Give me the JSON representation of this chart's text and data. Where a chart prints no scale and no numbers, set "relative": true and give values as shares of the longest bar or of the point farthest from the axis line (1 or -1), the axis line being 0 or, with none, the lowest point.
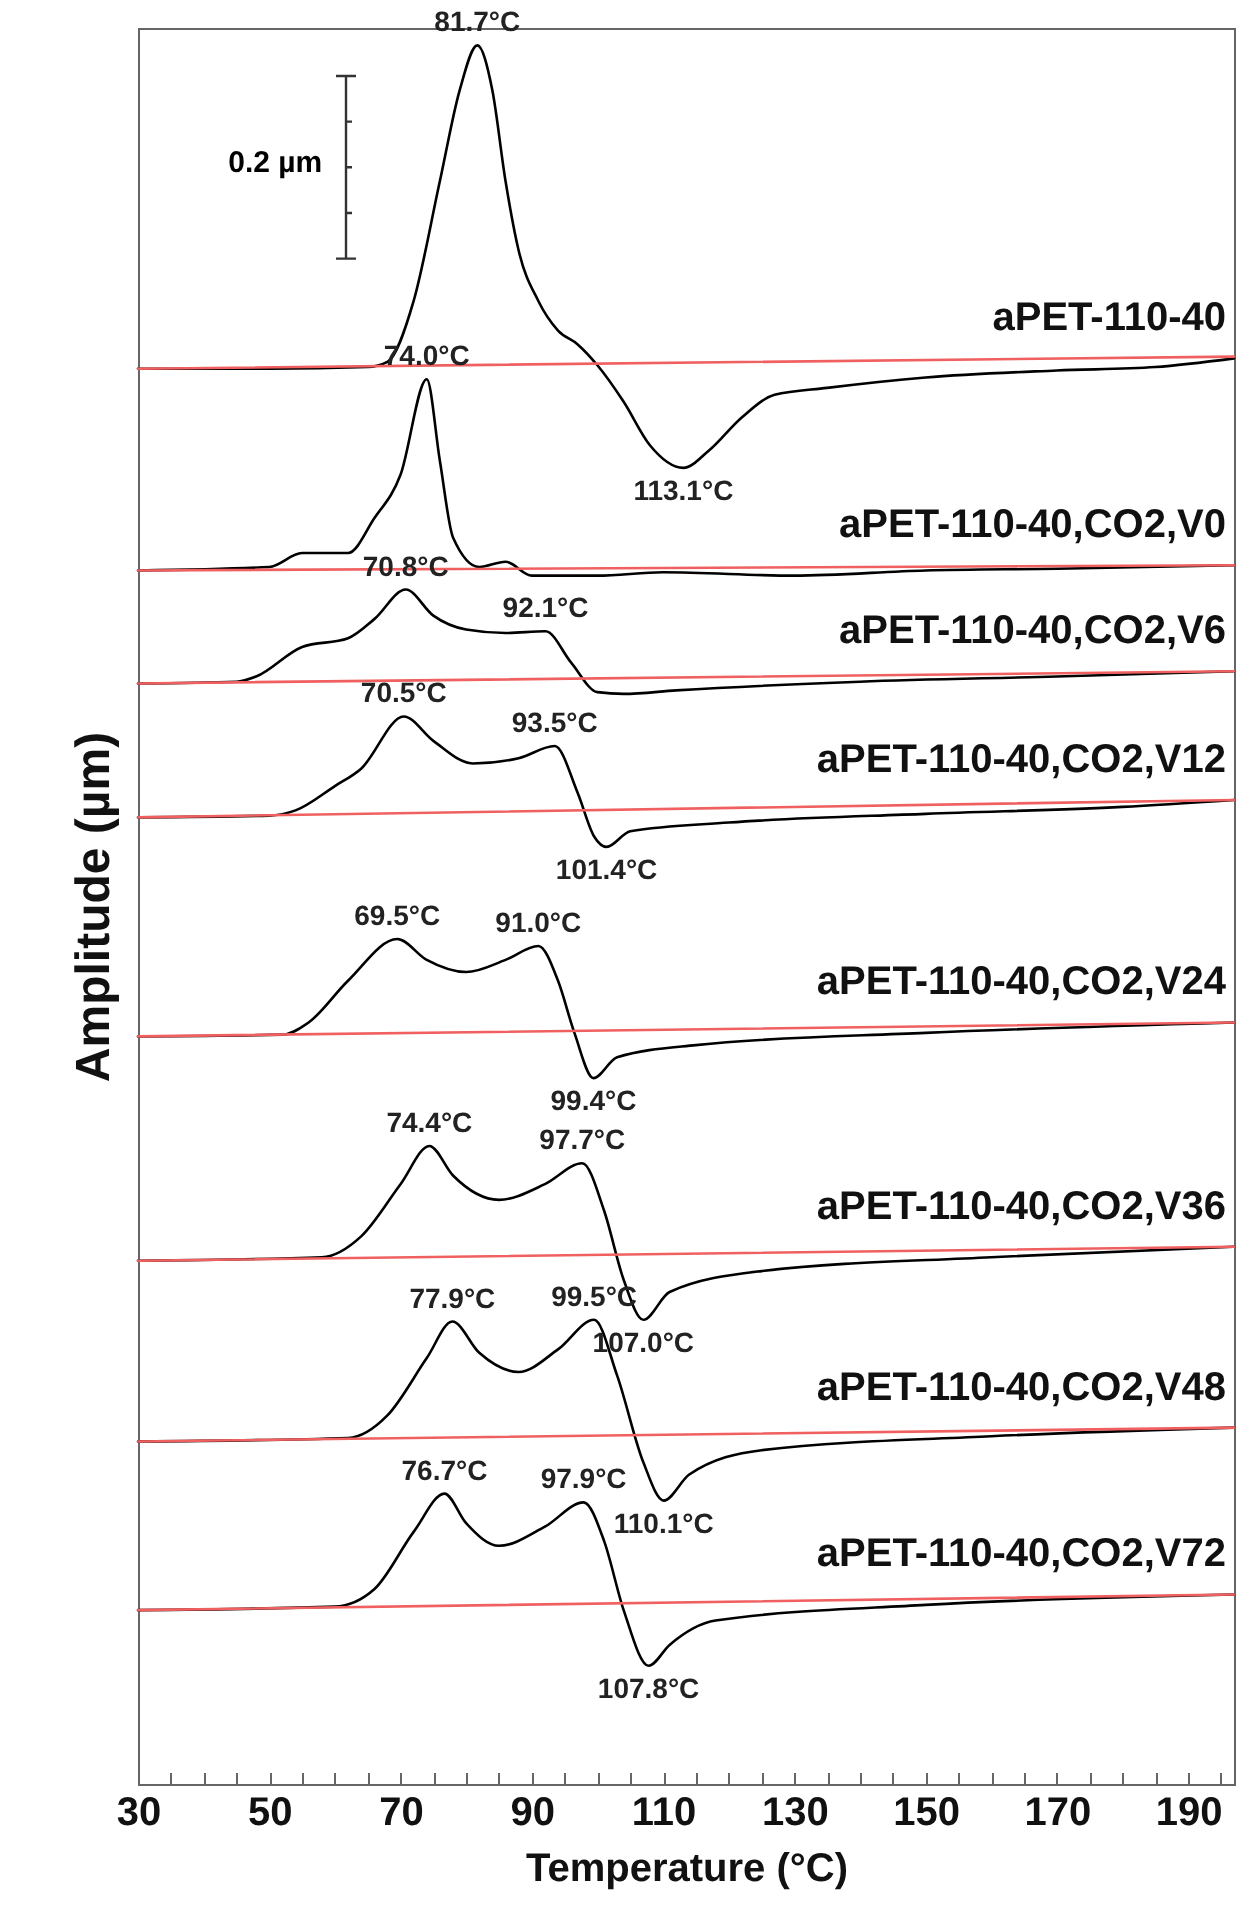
{
  "chart_data": {
    "type": "line",
    "relative": true,
    "xlabel": "Temperature (°C)",
    "ylabel": "Amplitude (µm)",
    "xlim": [
      30,
      197
    ],
    "tick_labels": "x",
    "xticks": [
      30,
      {
        "value": 35,
        "label": null
      },
      {
        "value": 40,
        "label": null
      },
      {
        "value": 45,
        "label": null
      },
      50,
      {
        "value": 55,
        "label": null
      },
      {
        "value": 60,
        "label": null
      },
      {
        "value": 65,
        "label": null
      },
      70,
      {
        "value": 75,
        "label": null
      },
      {
        "value": 80,
        "label": null
      },
      {
        "value": 85,
        "label": null
      },
      90,
      {
        "value": 95,
        "label": null
      },
      {
        "value": 100,
        "label": null
      },
      {
        "value": 105,
        "label": null
      },
      110,
      {
        "value": 115,
        "label": null
      },
      {
        "value": 120,
        "label": null
      },
      {
        "value": 125,
        "label": null
      },
      130,
      {
        "value": 135,
        "label": null
      },
      {
        "value": 140,
        "label": null
      },
      {
        "value": 145,
        "label": null
      },
      150,
      {
        "value": 155,
        "label": null
      },
      {
        "value": 160,
        "label": null
      },
      {
        "value": 165,
        "label": null
      },
      170,
      {
        "value": 175,
        "label": null
      },
      {
        "value": 180,
        "label": null
      },
      {
        "value": 185,
        "label": null
      },
      190,
      {
        "value": 195,
        "label": null
      }
    ],
    "series": [
      {
        "name": "aPET-110-40",
        "type": "line",
        "color": "#000000",
        "x": [
          30,
          50,
          65,
          68,
          72,
          76,
          79,
          81.7,
          84,
          86,
          88,
          91,
          94,
          97,
          100,
          104,
          108,
          113.1,
          117,
          122,
          127,
          135,
          150,
          170,
          185,
          197
        ],
        "values": [
          0.814,
          0.814,
          0.815,
          0.818,
          0.853,
          0.922,
          0.974,
          1,
          0.974,
          0.922,
          0.882,
          0.853,
          0.836,
          0.828,
          0.816,
          0.795,
          0.77,
          0.757,
          0.767,
          0.786,
          0.799,
          0.803,
          0.809,
          0.813,
          0.815,
          0.82
        ]
      },
      {
        "type": "line",
        "color": "#f06060",
        "x": [
          30,
          197
        ],
        "values": [
          0.814,
          0.821
        ]
      },
      {
        "name": "aPET-110-40,CO2,V0",
        "type": "line",
        "color": "#000000",
        "x": [
          30,
          50,
          55,
          62,
          66,
          70,
          74,
          76,
          78,
          82,
          86,
          90,
          100,
          110,
          130,
          150,
          170,
          197
        ],
        "values": [
          0.698,
          0.7,
          0.708,
          0.708,
          0.728,
          0.753,
          0.808,
          0.761,
          0.717,
          0.7,
          0.703,
          0.695,
          0.695,
          0.697,
          0.695,
          0.698,
          0.699,
          0.701
        ]
      },
      {
        "type": "line",
        "color": "#f06060",
        "x": [
          30,
          197
        ],
        "values": [
          0.698,
          0.701
        ]
      },
      {
        "name": "aPET-110-40,CO2,V6",
        "type": "line",
        "color": "#000000",
        "x": [
          30,
          45,
          48,
          55,
          62,
          66,
          70.8,
          75,
          80,
          86,
          92.1,
          96,
          100,
          104,
          112,
          140,
          170,
          197
        ],
        "values": [
          0.633,
          0.634,
          0.637,
          0.654,
          0.659,
          0.67,
          0.687,
          0.672,
          0.664,
          0.662,
          0.663,
          0.645,
          0.628,
          0.627,
          0.629,
          0.634,
          0.637,
          0.64
        ]
      },
      {
        "type": "line",
        "color": "#f06060",
        "x": [
          30,
          197
        ],
        "values": [
          0.633,
          0.64
        ]
      },
      {
        "name": "aPET-110-40,CO2,V12",
        "type": "line",
        "color": "#000000",
        "x": [
          30,
          50,
          54,
          60,
          64,
          70.5,
          75,
          81,
          88,
          93.5,
          97,
          99.5,
          101.4,
          105,
          120,
          150,
          180,
          197
        ],
        "values": [
          0.556,
          0.557,
          0.56,
          0.574,
          0.584,
          0.614,
          0.6,
          0.587,
          0.59,
          0.597,
          0.57,
          0.545,
          0.539,
          0.548,
          0.553,
          0.558,
          0.562,
          0.566
        ]
      },
      {
        "type": "line",
        "color": "#f06060",
        "x": [
          30,
          197
        ],
        "values": [
          0.556,
          0.566
        ]
      },
      {
        "name": "aPET-110-40,CO2,V24",
        "type": "line",
        "color": "#000000",
        "x": [
          30,
          52,
          56,
          62,
          69.5,
          74,
          80,
          86,
          91,
          94,
          96.5,
          99.4,
          103,
          115,
          150,
          197
        ],
        "values": [
          0.43,
          0.431,
          0.438,
          0.462,
          0.486,
          0.474,
          0.467,
          0.474,
          0.482,
          0.462,
          0.432,
          0.406,
          0.418,
          0.425,
          0.432,
          0.438
        ]
      },
      {
        "type": "line",
        "color": "#f06060",
        "x": [
          30,
          197
        ],
        "values": [
          0.43,
          0.438
        ]
      },
      {
        "name": "aPET-110-40,CO2,V36",
        "type": "line",
        "color": "#000000",
        "x": [
          30,
          58,
          64,
          70,
          74.4,
          78,
          85,
          92,
          97.7,
          101,
          104,
          107,
          111,
          125,
          160,
          197
        ],
        "values": [
          0.301,
          0.303,
          0.315,
          0.345,
          0.367,
          0.35,
          0.336,
          0.345,
          0.357,
          0.33,
          0.29,
          0.267,
          0.283,
          0.295,
          0.303,
          0.309
        ]
      },
      {
        "type": "line",
        "color": "#f06060",
        "x": [
          30,
          197
        ],
        "values": [
          0.301,
          0.309
        ]
      },
      {
        "name": "aPET-110-40,CO2,V48",
        "type": "line",
        "color": "#000000",
        "x": [
          30,
          62,
          68,
          74,
          77.9,
          82,
          88,
          94,
          99.5,
          103,
          107,
          110.1,
          114,
          125,
          160,
          197
        ],
        "values": [
          0.197,
          0.199,
          0.212,
          0.245,
          0.266,
          0.248,
          0.237,
          0.25,
          0.267,
          0.235,
          0.185,
          0.163,
          0.178,
          0.192,
          0.2,
          0.205
        ]
      },
      {
        "type": "line",
        "color": "#f06060",
        "x": [
          30,
          197
        ],
        "values": [
          0.197,
          0.205
        ]
      },
      {
        "name": "aPET-110-40,CO2,V72",
        "type": "line",
        "color": "#000000",
        "x": [
          30,
          60,
          66,
          72,
          76.7,
          80,
          85,
          92,
          97.9,
          101,
          104,
          107.8,
          111,
          118,
          150,
          197
        ],
        "values": [
          0.1,
          0.102,
          0.112,
          0.145,
          0.167,
          0.15,
          0.137,
          0.148,
          0.162,
          0.14,
          0.1,
          0.068,
          0.08,
          0.094,
          0.103,
          0.109
        ]
      },
      {
        "type": "line",
        "color": "#f06060",
        "x": [
          30,
          197
        ],
        "values": [
          0.1,
          0.109
        ]
      }
    ],
    "annotations": [
      "0.2 µm",
      {
        "text": "81.7°C",
        "x": 81.7,
        "y": 1
      },
      {
        "text": "113.1°C",
        "x": 113.1,
        "y": 0.757
      },
      {
        "text": "74.0°C",
        "x": 74,
        "y": 0.808
      },
      {
        "text": "70.8°C",
        "x": 70.8,
        "y": 0.687
      },
      {
        "text": "92.1°C",
        "x": 92.1,
        "y": 0.663
      },
      {
        "text": "70.5°C",
        "x": 70.5,
        "y": 0.614
      },
      {
        "text": "93.5°C",
        "x": 93.5,
        "y": 0.597
      },
      {
        "text": "101.4°C",
        "x": 101.4,
        "y": 0.539
      },
      {
        "text": "69.5°C",
        "x": 69.5,
        "y": 0.486
      },
      {
        "text": "91.0°C",
        "x": 91,
        "y": 0.482
      },
      {
        "text": "99.4°C",
        "x": 99.4,
        "y": 0.406
      },
      {
        "text": "74.4°C",
        "x": 74.4,
        "y": 0.367
      },
      {
        "text": "97.7°C",
        "x": 97.7,
        "y": 0.357
      },
      {
        "text": "107.0°C",
        "x": 107,
        "y": 0.267
      },
      {
        "text": "77.9°C",
        "x": 77.9,
        "y": 0.266
      },
      {
        "text": "99.5°C",
        "x": 99.5,
        "y": 0.267
      },
      {
        "text": "110.1°C",
        "x": 110.1,
        "y": 0.163
      },
      {
        "text": "76.7°C",
        "x": 76.7,
        "y": 0.167
      },
      {
        "text": "97.9°C",
        "x": 97.9,
        "y": 0.162
      },
      {
        "text": "107.8°C",
        "x": 107.8,
        "y": 0.068
      }
    ]
  }
}
